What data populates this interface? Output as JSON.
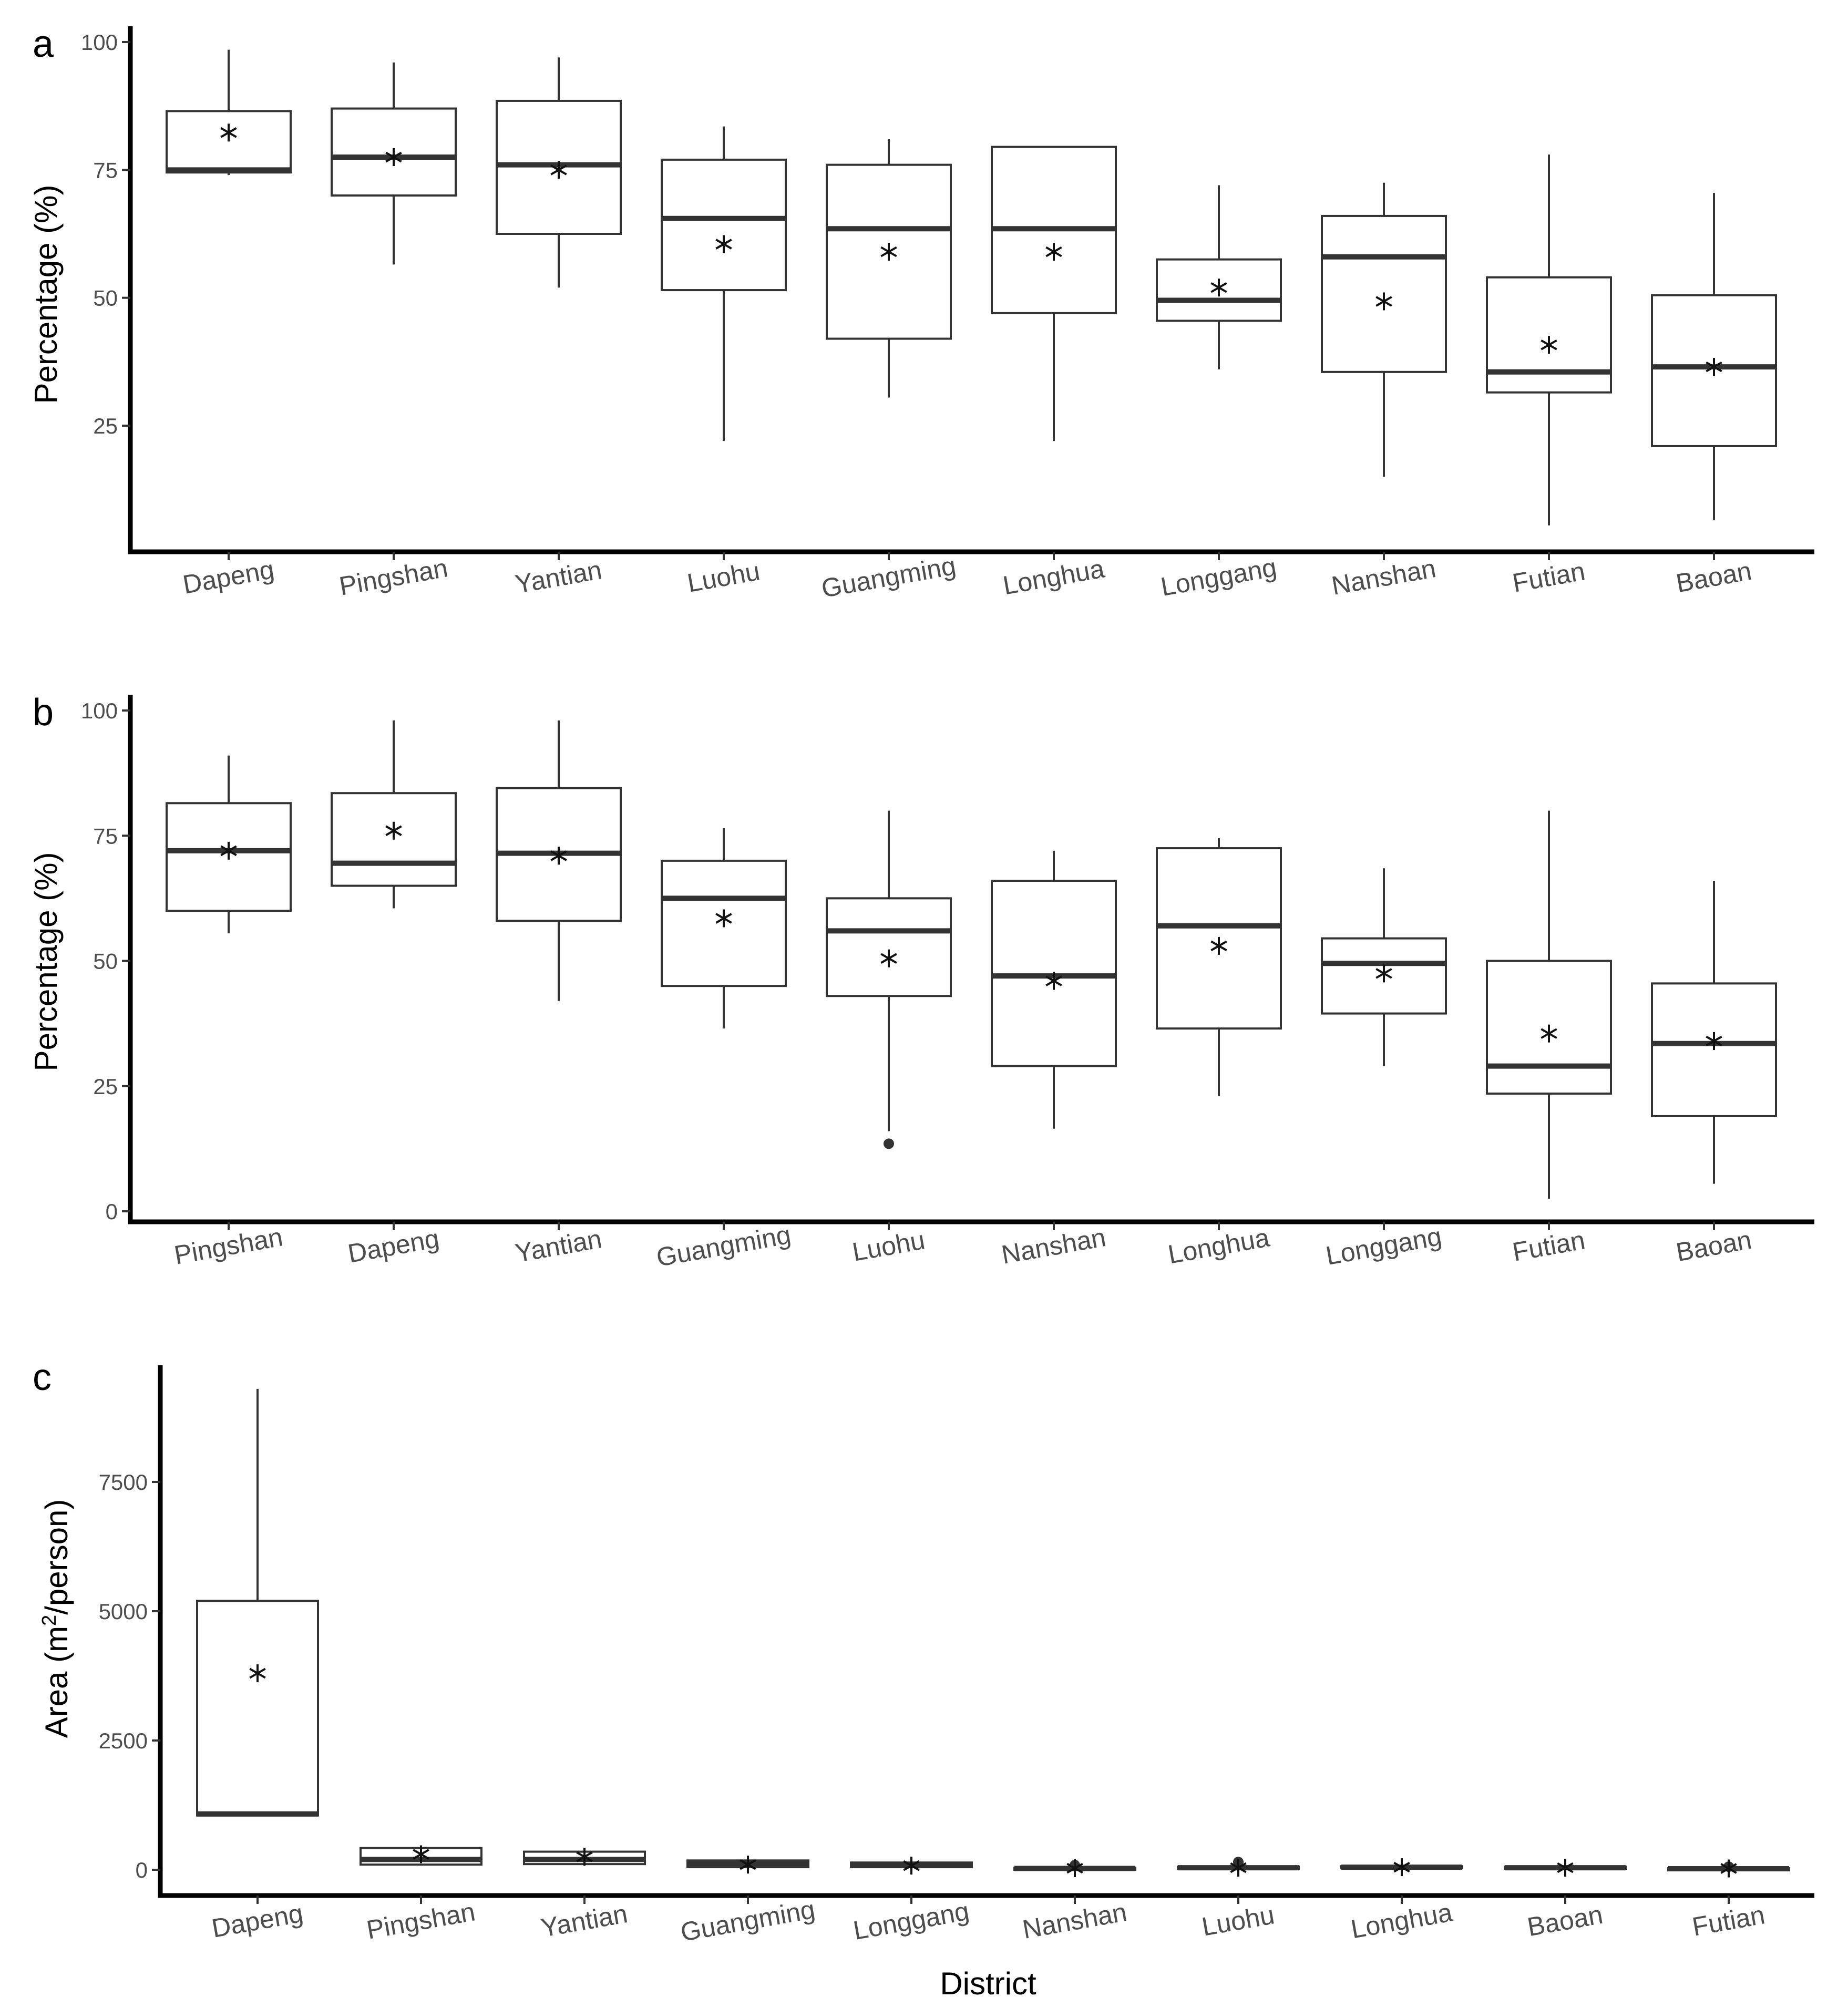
{
  "x_axis_title": "District",
  "chart_data": [
    {
      "panel": "a",
      "type": "boxplot",
      "ylabel": "Percentage (%)",
      "ylim": [
        0,
        100
      ],
      "yticks": [
        25,
        50,
        75,
        100
      ],
      "categories": [
        "Dapeng",
        "Pingshan",
        "Yantian",
        "Luohu",
        "Guangming",
        "Longhua",
        "Longgang",
        "Nanshan",
        "Futian",
        "Baoan"
      ],
      "boxes": [
        {
          "min": 74,
          "q1": 74.5,
          "median": 75,
          "q3": 86.5,
          "max": 98.5,
          "mean": 82.3,
          "outliers": []
        },
        {
          "min": 56.5,
          "q1": 70,
          "median": 77.5,
          "q3": 87,
          "max": 96,
          "mean": 77.5,
          "outliers": []
        },
        {
          "min": 52,
          "q1": 62.5,
          "median": 76,
          "q3": 88.5,
          "max": 97,
          "mean": 75,
          "outliers": []
        },
        {
          "min": 22,
          "q1": 51.5,
          "median": 65.5,
          "q3": 77,
          "max": 83.5,
          "mean": 60.5,
          "outliers": []
        },
        {
          "min": 30.5,
          "q1": 42,
          "median": 63.5,
          "q3": 76,
          "max": 81,
          "mean": 59,
          "outliers": []
        },
        {
          "min": 22,
          "q1": 47,
          "median": 63.5,
          "q3": 79.5,
          "max": 79.5,
          "mean": 59,
          "outliers": []
        },
        {
          "min": 36,
          "q1": 45.5,
          "median": 49.5,
          "q3": 57.5,
          "max": 72,
          "mean": 52,
          "outliers": []
        },
        {
          "min": 15,
          "q1": 35.5,
          "median": 58,
          "q3": 66,
          "max": 72.5,
          "mean": 49.3,
          "outliers": []
        },
        {
          "min": 5.5,
          "q1": 31.5,
          "median": 35.5,
          "q3": 54,
          "max": 78,
          "mean": 40.8,
          "outliers": []
        },
        {
          "min": 6.5,
          "q1": 21,
          "median": 36.5,
          "q3": 50.5,
          "max": 70.5,
          "mean": 36.5,
          "outliers": []
        }
      ]
    },
    {
      "panel": "b",
      "type": "boxplot",
      "ylabel": "Percentage (%)",
      "ylim": [
        0,
        100
      ],
      "yticks": [
        0,
        25,
        50,
        75,
        100
      ],
      "categories": [
        "Pingshan",
        "Dapeng",
        "Yantian",
        "Guangming",
        "Luohu",
        "Nanshan",
        "Longhua",
        "Longgang",
        "Futian",
        "Baoan"
      ],
      "boxes": [
        {
          "min": 55.5,
          "q1": 60,
          "median": 72,
          "q3": 81.5,
          "max": 91,
          "mean": 72,
          "outliers": []
        },
        {
          "min": 60.5,
          "q1": 65,
          "median": 69.5,
          "q3": 83.5,
          "max": 98,
          "mean": 76,
          "outliers": []
        },
        {
          "min": 42,
          "q1": 58,
          "median": 71.5,
          "q3": 84.5,
          "max": 98,
          "mean": 71,
          "outliers": []
        },
        {
          "min": 36.5,
          "q1": 45,
          "median": 62.5,
          "q3": 70,
          "max": 76.5,
          "mean": 58.5,
          "outliers": []
        },
        {
          "min": 16,
          "q1": 43,
          "median": 56,
          "q3": 62.5,
          "max": 80,
          "mean": 50.5,
          "outliers": [
            13.5
          ]
        },
        {
          "min": 16.5,
          "q1": 29,
          "median": 47,
          "q3": 66,
          "max": 72,
          "mean": 46,
          "outliers": []
        },
        {
          "min": 23,
          "q1": 36.5,
          "median": 57,
          "q3": 72.5,
          "max": 74.5,
          "mean": 53,
          "outliers": []
        },
        {
          "min": 29,
          "q1": 39.5,
          "median": 49.5,
          "q3": 54.5,
          "max": 68.5,
          "mean": 47.5,
          "outliers": []
        },
        {
          "min": 2.5,
          "q1": 23.5,
          "median": 29,
          "q3": 50,
          "max": 80,
          "mean": 35.5,
          "outliers": []
        },
        {
          "min": 5.5,
          "q1": 19,
          "median": 33.5,
          "q3": 45.5,
          "max": 66,
          "mean": 34,
          "outliers": []
        }
      ]
    },
    {
      "panel": "c",
      "type": "boxplot",
      "ylabel": "Area (m2/person)",
      "ylim": [
        -500,
        10000
      ],
      "yticks": [
        0,
        2500,
        5000,
        7500
      ],
      "categories": [
        "Dapeng",
        "Pingshan",
        "Yantian",
        "Guangming",
        "Longgang",
        "Nanshan",
        "Luohu",
        "Longhua",
        "Baoan",
        "Futian"
      ],
      "boxes": [
        {
          "min": 1050,
          "q1": 1050,
          "median": 1080,
          "q3": 5200,
          "max": 9300,
          "mean": 3800,
          "outliers": []
        },
        {
          "min": 80,
          "q1": 100,
          "median": 200,
          "q3": 420,
          "max": 420,
          "mean": 300,
          "outliers": []
        },
        {
          "min": 90,
          "q1": 110,
          "median": 200,
          "q3": 350,
          "max": 350,
          "mean": 250,
          "outliers": []
        },
        {
          "min": 40,
          "q1": 50,
          "median": 120,
          "q3": 180,
          "max": 180,
          "mean": 100,
          "outliers": []
        },
        {
          "min": 40,
          "q1": 50,
          "median": 100,
          "q3": 140,
          "max": 140,
          "mean": 80,
          "outliers": []
        },
        {
          "min": 10,
          "q1": 15,
          "median": 25,
          "q3": 40,
          "max": 40,
          "mean": 30,
          "outliers": [
            90
          ]
        },
        {
          "min": 10,
          "q1": 15,
          "median": 40,
          "q3": 60,
          "max": 60,
          "mean": 40,
          "outliers": [
            150
          ]
        },
        {
          "min": 30,
          "q1": 40,
          "median": 50,
          "q3": 70,
          "max": 70,
          "mean": 50,
          "outliers": []
        },
        {
          "min": 20,
          "q1": 30,
          "median": 40,
          "q3": 60,
          "max": 60,
          "mean": 40,
          "outliers": []
        },
        {
          "min": 5,
          "q1": 10,
          "median": 20,
          "q3": 30,
          "max": 30,
          "mean": 25,
          "outliers": [
            60
          ]
        }
      ]
    }
  ]
}
